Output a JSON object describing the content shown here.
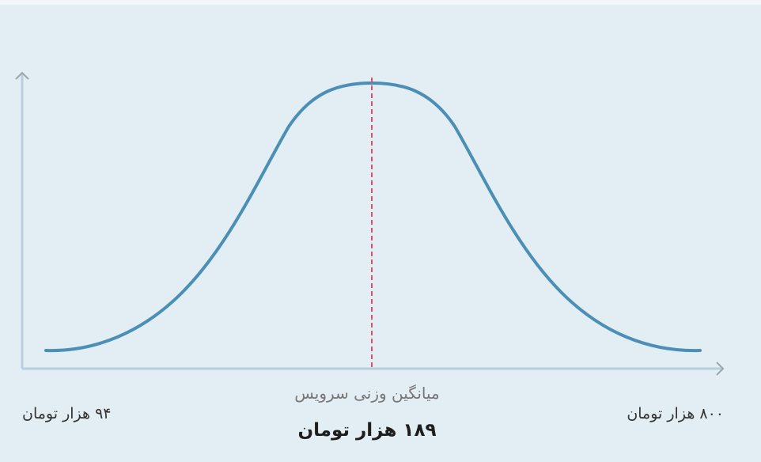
{
  "labels": {
    "min": "۹۴ هزار تومان",
    "max": "۸۰۰ هزار تومان",
    "mean_caption": "میانگین وزنی سرویس",
    "mean_value": "۱۸۹ هزار تومان"
  }
}
